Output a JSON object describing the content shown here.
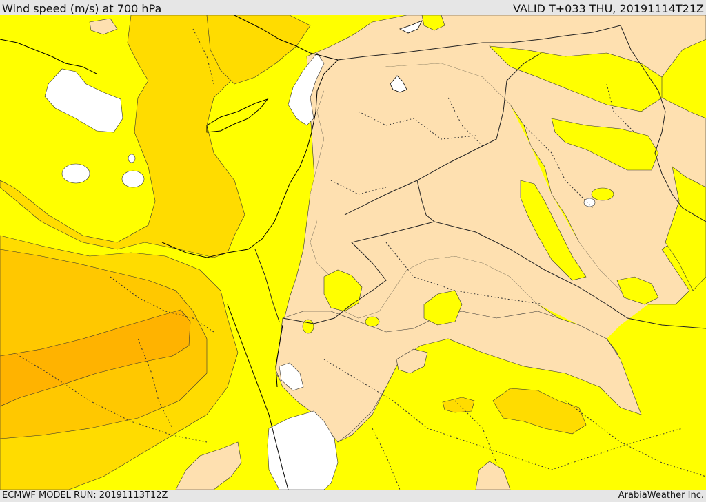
{
  "header": {
    "title": "Wind speed (m/s) at 700 hPa",
    "valid": "VALID T+033 THU, 20191114T21Z"
  },
  "footer": {
    "model_run": "ECMWF MODEL RUN: 20191113T12Z",
    "credit": "ArabiaWeather Inc."
  },
  "colors": {
    "wind_0_5": "#ffffff",
    "wind_5_10": "#fee0b0",
    "wind_10_15": "#ffff00",
    "wind_15_20": "#ffdc00",
    "wind_20_25": "#ffc800",
    "wind_25_30": "#ffb300",
    "coastline": "#000000",
    "admin_boundary": "#333333"
  }
}
